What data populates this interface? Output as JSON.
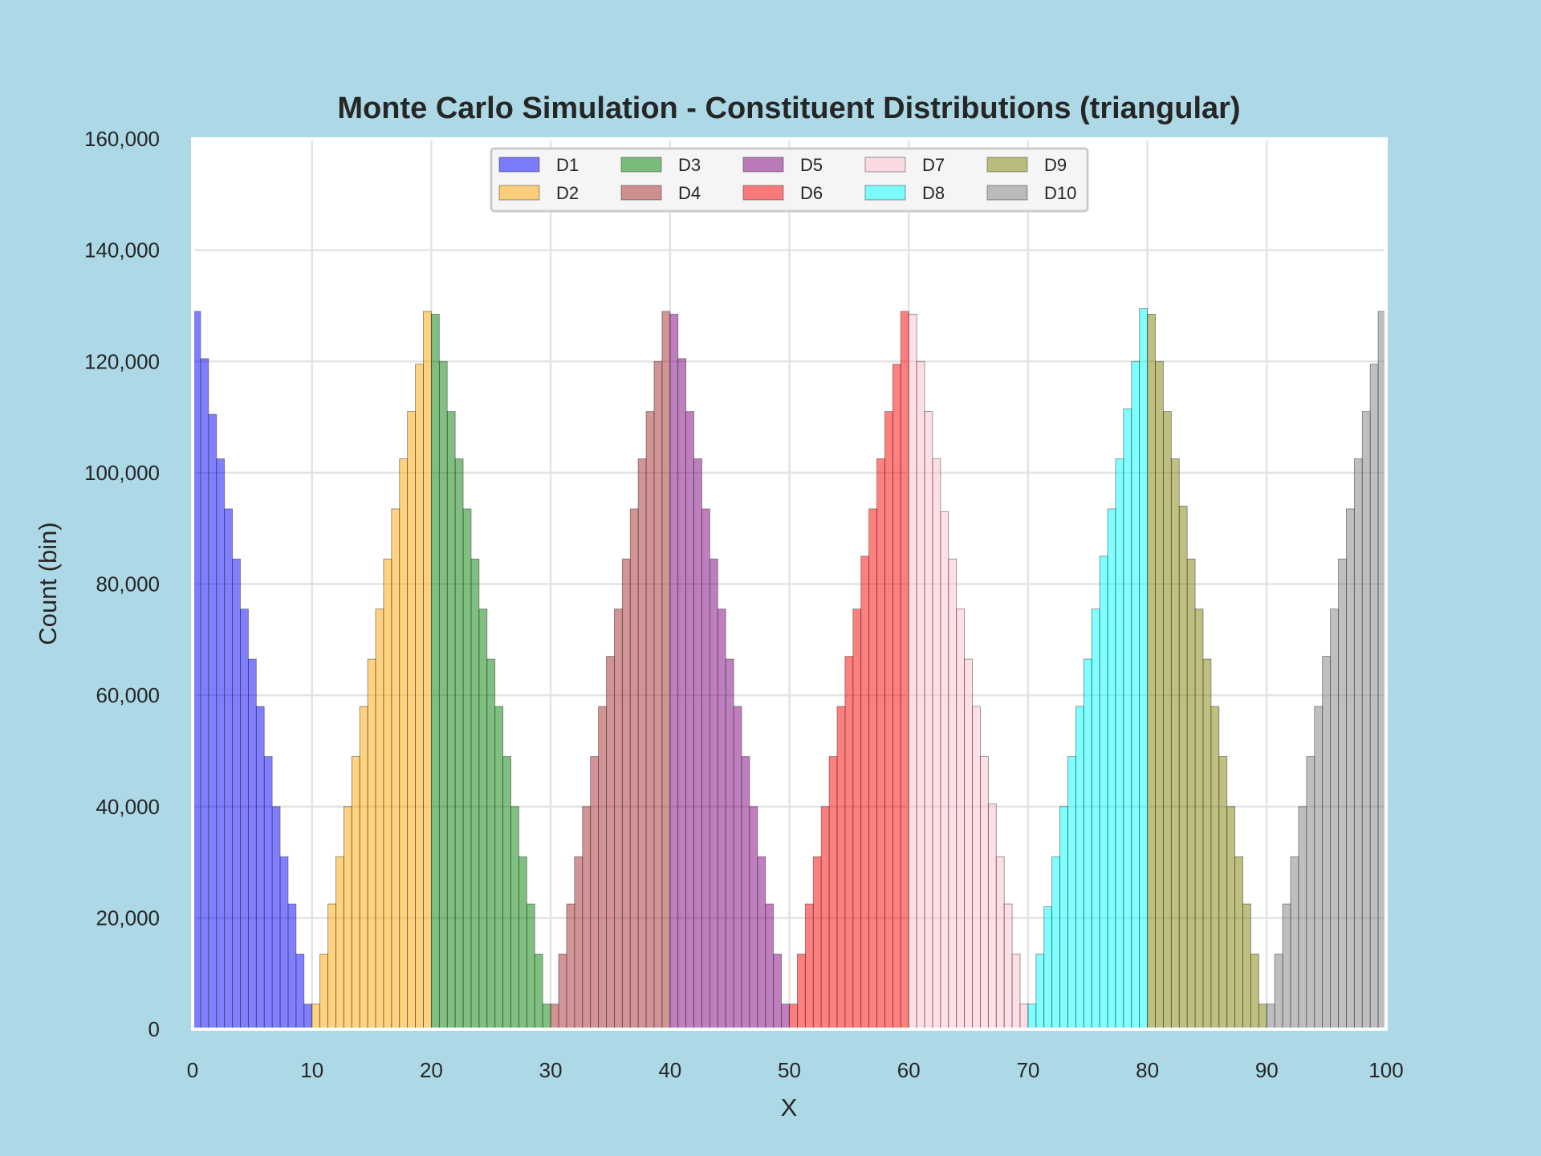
{
  "chart_data": {
    "type": "bar",
    "title": "Monte Carlo Simulation - Constituent Distributions (triangular)",
    "xlabel": "X",
    "ylabel": "Count (bin)",
    "xlim": [
      0,
      100
    ],
    "ylim": [
      0,
      160000
    ],
    "x_ticks": [
      0,
      10,
      20,
      30,
      40,
      50,
      60,
      70,
      80,
      90,
      100
    ],
    "x_tick_labels": [
      "0",
      "10",
      "20",
      "30",
      "40",
      "50",
      "60",
      "70",
      "80",
      "90",
      "100"
    ],
    "y_ticks": [
      0,
      20000,
      40000,
      60000,
      80000,
      100000,
      120000,
      140000,
      160000
    ],
    "y_tick_labels": [
      "0",
      "20,000",
      "40,000",
      "60,000",
      "80,000",
      "100,000",
      "120,000",
      "140,000",
      "160,000"
    ],
    "grid": true,
    "legend_position": "top-center",
    "bin_width": 0.667,
    "series": [
      {
        "name": "D1",
        "color": "#0000ff",
        "bin_starts": [
          0,
          0.667,
          1.333,
          2,
          2.667,
          3.333,
          4,
          4.667,
          5.333,
          6,
          6.667,
          7.333,
          8,
          8.667,
          9.333
        ],
        "values": [
          129000,
          120500,
          110500,
          102500,
          93500,
          84500,
          75500,
          66500,
          58000,
          49000,
          40000,
          31000,
          22500,
          13500,
          4500
        ]
      },
      {
        "name": "D2",
        "color": "#ffa500",
        "bin_starts": [
          10,
          10.667,
          11.333,
          12,
          12.667,
          13.333,
          14,
          14.667,
          15.333,
          16,
          16.667,
          17.333,
          18,
          18.667,
          19.333
        ],
        "values": [
          4500,
          13500,
          22500,
          31000,
          40000,
          49000,
          58000,
          66500,
          75500,
          84500,
          93500,
          102500,
          111000,
          119500,
          129000
        ]
      },
      {
        "name": "D3",
        "color": "#008000",
        "bin_starts": [
          20,
          20.667,
          21.333,
          22,
          22.667,
          23.333,
          24,
          24.667,
          25.333,
          26,
          26.667,
          27.333,
          28,
          28.667,
          29.333
        ],
        "values": [
          128500,
          120000,
          111000,
          102500,
          93500,
          84500,
          75500,
          66500,
          58000,
          49000,
          40000,
          31000,
          22500,
          13500,
          4500
        ]
      },
      {
        "name": "D4",
        "color": "#a52a2a",
        "bin_starts": [
          30,
          30.667,
          31.333,
          32,
          32.667,
          33.333,
          34,
          34.667,
          35.333,
          36,
          36.667,
          37.333,
          38,
          38.667,
          39.333
        ],
        "values": [
          4500,
          13500,
          22500,
          31000,
          40000,
          49000,
          58000,
          67000,
          75500,
          84500,
          93500,
          102500,
          111000,
          120000,
          129000
        ]
      },
      {
        "name": "D5",
        "color": "#800080",
        "bin_starts": [
          40,
          40.667,
          41.333,
          42,
          42.667,
          43.333,
          44,
          44.667,
          45.333,
          46,
          46.667,
          47.333,
          48,
          48.667,
          49.333
        ],
        "values": [
          128500,
          120500,
          111000,
          102500,
          93500,
          84500,
          75500,
          66500,
          58000,
          49000,
          40000,
          31000,
          22500,
          13500,
          4500
        ]
      },
      {
        "name": "D6",
        "color": "#ff0000",
        "bin_starts": [
          50,
          50.667,
          51.333,
          52,
          52.667,
          53.333,
          54,
          54.667,
          55.333,
          56,
          56.667,
          57.333,
          58,
          58.667,
          59.333
        ],
        "values": [
          4500,
          13500,
          22500,
          31000,
          40000,
          49000,
          58000,
          67000,
          75500,
          85000,
          93500,
          102500,
          111000,
          119500,
          129000
        ]
      },
      {
        "name": "D7",
        "color": "#ffc0cb",
        "bin_starts": [
          60,
          60.667,
          61.333,
          62,
          62.667,
          63.333,
          64,
          64.667,
          65.333,
          66,
          66.667,
          67.333,
          68,
          68.667,
          69.333
        ],
        "values": [
          128500,
          120000,
          111000,
          102500,
          93000,
          84500,
          75500,
          66500,
          58000,
          49000,
          40500,
          31000,
          22500,
          13500,
          4500
        ]
      },
      {
        "name": "D8",
        "color": "#00ffff",
        "bin_starts": [
          70,
          70.667,
          71.333,
          72,
          72.667,
          73.333,
          74,
          74.667,
          75.333,
          76,
          76.667,
          77.333,
          78,
          78.667,
          79.333
        ],
        "values": [
          4500,
          13500,
          22000,
          31000,
          40000,
          49000,
          58000,
          66500,
          75500,
          85000,
          93500,
          102500,
          111500,
          120000,
          129500
        ]
      },
      {
        "name": "D9",
        "color": "#808000",
        "bin_starts": [
          80,
          80.667,
          81.333,
          82,
          82.667,
          83.333,
          84,
          84.667,
          85.333,
          86,
          86.667,
          87.333,
          88,
          88.667,
          89.333
        ],
        "values": [
          128500,
          120000,
          111000,
          102500,
          94000,
          84500,
          75500,
          66500,
          58000,
          49000,
          40000,
          31000,
          22500,
          13500,
          4500
        ]
      },
      {
        "name": "D10",
        "color": "#808080",
        "bin_starts": [
          90,
          90.667,
          91.333,
          92,
          92.667,
          93.333,
          94,
          94.667,
          95.333,
          96,
          96.667,
          97.333,
          98,
          98.667,
          99.333
        ],
        "values": [
          4500,
          13500,
          22500,
          31000,
          40000,
          49000,
          58000,
          67000,
          75500,
          84500,
          93500,
          102500,
          111000,
          119500,
          129000
        ]
      }
    ]
  }
}
